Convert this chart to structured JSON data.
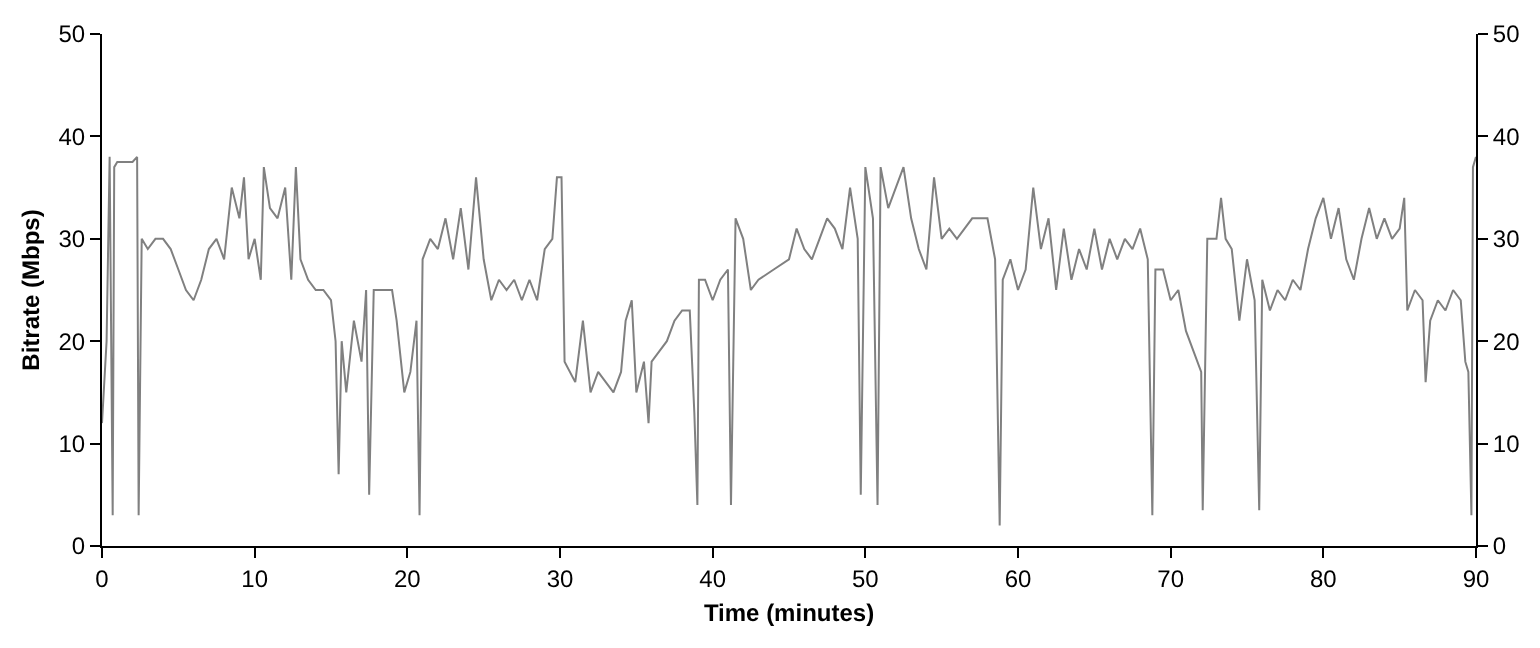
{
  "chart_data": {
    "type": "line",
    "xlabel": "Time (minutes)",
    "ylabel": "Bitrate (Mbps)",
    "xlim": [
      0,
      90
    ],
    "xticks": [
      0,
      10,
      20,
      30,
      40,
      50,
      60,
      70,
      80,
      90
    ],
    "ylim": [
      0,
      50
    ],
    "yticks": [
      0,
      10,
      20,
      30,
      40,
      50
    ],
    "y2lim": [
      0,
      50
    ],
    "y2ticks": [
      0,
      10,
      20,
      30,
      40,
      50
    ],
    "marker": "none",
    "line_style": "solid",
    "series": [
      {
        "color": "#808080",
        "x": [
          0,
          0.3,
          0.5,
          0.7,
          0.8,
          1,
          2,
          2.3,
          2.4,
          2.6,
          3,
          3.5,
          4,
          4.5,
          5,
          5.5,
          6,
          6.5,
          7,
          7.5,
          8,
          8.5,
          9,
          9.3,
          9.6,
          10,
          10.4,
          10.6,
          11,
          11.5,
          12,
          12.4,
          12.7,
          13,
          13.5,
          14,
          14.5,
          15,
          15.3,
          15.5,
          15.7,
          16,
          16.5,
          17,
          17.3,
          17.5,
          17.8,
          18,
          18.5,
          19,
          19.3,
          19.8,
          20.2,
          20.6,
          20.8,
          21,
          21.5,
          22,
          22.5,
          23,
          23.5,
          24,
          24.5,
          25,
          25.5,
          26,
          26.5,
          27,
          27.5,
          28,
          28.5,
          29,
          29.5,
          29.8,
          30.1,
          30.3,
          31,
          31.5,
          32,
          32.5,
          33,
          33.5,
          34,
          34.3,
          34.7,
          35,
          35.5,
          35.8,
          36,
          36.5,
          37,
          37.5,
          38,
          38.5,
          38.8,
          39,
          39.1,
          39.5,
          40,
          40.5,
          41,
          41.2,
          41.5,
          42,
          42.5,
          43,
          44,
          45,
          45.5,
          46,
          46.5,
          47,
          47.5,
          48,
          48.5,
          49,
          49.5,
          49.7,
          50,
          50.5,
          50.8,
          51,
          51.5,
          52,
          52.5,
          53,
          53.5,
          54,
          54.5,
          55,
          55.5,
          56,
          57,
          58,
          58.5,
          58.8,
          59,
          59.5,
          60,
          60.5,
          61,
          61.5,
          62,
          62.5,
          63,
          63.5,
          64,
          64.5,
          65,
          65.5,
          66,
          66.5,
          67,
          67.5,
          68,
          68.5,
          68.8,
          69,
          69.5,
          70,
          70.5,
          71,
          71.5,
          72,
          72.1,
          72.4,
          73,
          73.3,
          73.6,
          74,
          74.5,
          75,
          75.5,
          75.8,
          76,
          76.5,
          77,
          77.5,
          78,
          78.5,
          79,
          79.5,
          80,
          80.5,
          81,
          81.5,
          82,
          82.5,
          83,
          83.5,
          84,
          84.5,
          85,
          85.3,
          85.5,
          86,
          86.5,
          86.7,
          87,
          87.5,
          88,
          88.5,
          89,
          89.3,
          89.5,
          89.7,
          89.8,
          90
        ],
        "values": [
          12,
          20,
          38,
          3,
          37,
          37.5,
          37.5,
          38,
          3,
          30,
          29,
          30,
          30,
          29,
          27,
          25,
          24,
          26,
          29,
          30,
          28,
          35,
          32,
          36,
          28,
          30,
          26,
          37,
          33,
          32,
          35,
          26,
          37,
          28,
          26,
          25,
          25,
          24,
          20,
          7,
          20,
          15,
          22,
          18,
          25,
          5,
          25,
          25,
          25,
          25,
          22,
          15,
          17,
          22,
          3,
          28,
          30,
          29,
          32,
          28,
          33,
          27,
          36,
          28,
          24,
          26,
          25,
          26,
          24,
          26,
          24,
          29,
          30,
          36,
          36,
          18,
          16,
          22,
          15,
          17,
          16,
          15,
          17,
          22,
          24,
          15,
          18,
          12,
          18,
          19,
          20,
          22,
          23,
          23,
          13,
          4,
          26,
          26,
          24,
          26,
          27,
          4,
          32,
          30,
          25,
          26,
          27,
          28,
          31,
          29,
          28,
          30,
          32,
          31,
          29,
          35,
          30,
          5,
          37,
          32,
          4,
          37,
          33,
          35,
          37,
          32,
          29,
          27,
          36,
          30,
          31,
          30,
          32,
          32,
          28,
          2,
          26,
          28,
          25,
          27,
          35,
          29,
          32,
          25,
          31,
          26,
          29,
          27,
          31,
          27,
          30,
          28,
          30,
          29,
          31,
          28,
          3,
          27,
          27,
          24,
          25,
          21,
          19,
          17,
          3.5,
          30,
          30,
          34,
          30,
          29,
          22,
          28,
          24,
          3.5,
          26,
          23,
          25,
          24,
          26,
          25,
          29,
          32,
          34,
          30,
          33,
          28,
          26,
          30,
          33,
          30,
          32,
          30,
          31,
          34,
          23,
          25,
          24,
          16,
          22,
          24,
          23,
          25,
          24,
          18,
          17,
          3,
          37,
          38
        ]
      }
    ]
  }
}
